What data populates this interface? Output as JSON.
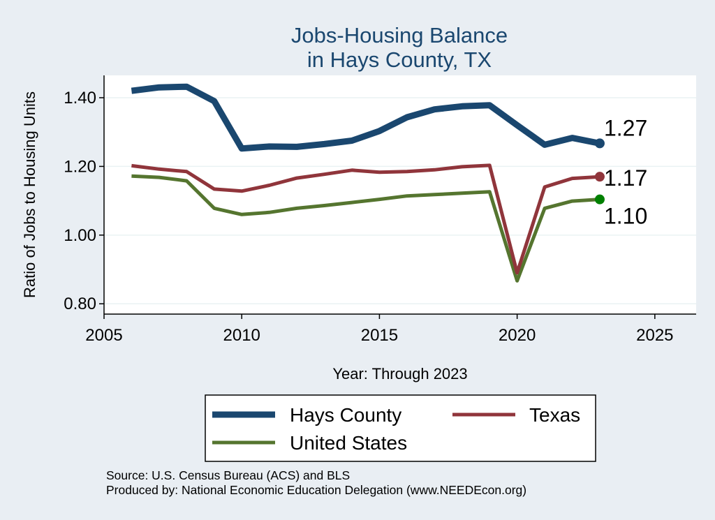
{
  "chart_data": {
    "type": "line",
    "title_lines": [
      "Jobs-Housing Balance",
      "in Hays County, TX"
    ],
    "xlabel": "Year: Through 2023",
    "ylabel": "Ratio of Jobs to Housing Units",
    "xlim": [
      2005,
      2026.5
    ],
    "ylim": [
      0.77,
      1.465
    ],
    "xticks": [
      2005,
      2010,
      2015,
      2020,
      2025
    ],
    "yticks": [
      0.8,
      1.0,
      1.2,
      1.4
    ],
    "ytick_labels": [
      "0.80",
      "1.00",
      "1.20",
      "1.40"
    ],
    "grid": true,
    "legend_position": "bottom",
    "x": [
      2006,
      2007,
      2008,
      2009,
      2010,
      2011,
      2012,
      2013,
      2014,
      2015,
      2016,
      2017,
      2018,
      2019,
      2020,
      2021,
      2022,
      2023
    ],
    "series": [
      {
        "name": "Hays County",
        "color": "#1a476f",
        "end_label": "1.27",
        "values": [
          1.42,
          1.43,
          1.432,
          1.39,
          1.252,
          1.258,
          1.257,
          1.265,
          1.275,
          1.303,
          1.343,
          1.366,
          1.375,
          1.378,
          1.32,
          1.263,
          1.283,
          1.267
        ]
      },
      {
        "name": "Texas",
        "color": "#90353b",
        "end_label": "1.17",
        "values": [
          1.202,
          1.192,
          1.185,
          1.134,
          1.128,
          1.145,
          1.166,
          1.177,
          1.189,
          1.183,
          1.185,
          1.19,
          1.199,
          1.203,
          0.89,
          1.14,
          1.165,
          1.17
        ]
      },
      {
        "name": "United States",
        "color": "#55752f",
        "end_label": "1.10",
        "values": [
          1.172,
          1.168,
          1.158,
          1.078,
          1.06,
          1.066,
          1.078,
          1.086,
          1.095,
          1.104,
          1.114,
          1.118,
          1.122,
          1.126,
          0.867,
          1.078,
          1.099,
          1.104
        ]
      }
    ],
    "end_marker_colors": [
      "#1a476f",
      "#90353b",
      "#008000"
    ],
    "source_lines": [
      "Source: U.S. Census Bureau (ACS) and BLS",
      "Produced by: National Economic Education Delegation (www.NEEDEcon.org)"
    ]
  }
}
